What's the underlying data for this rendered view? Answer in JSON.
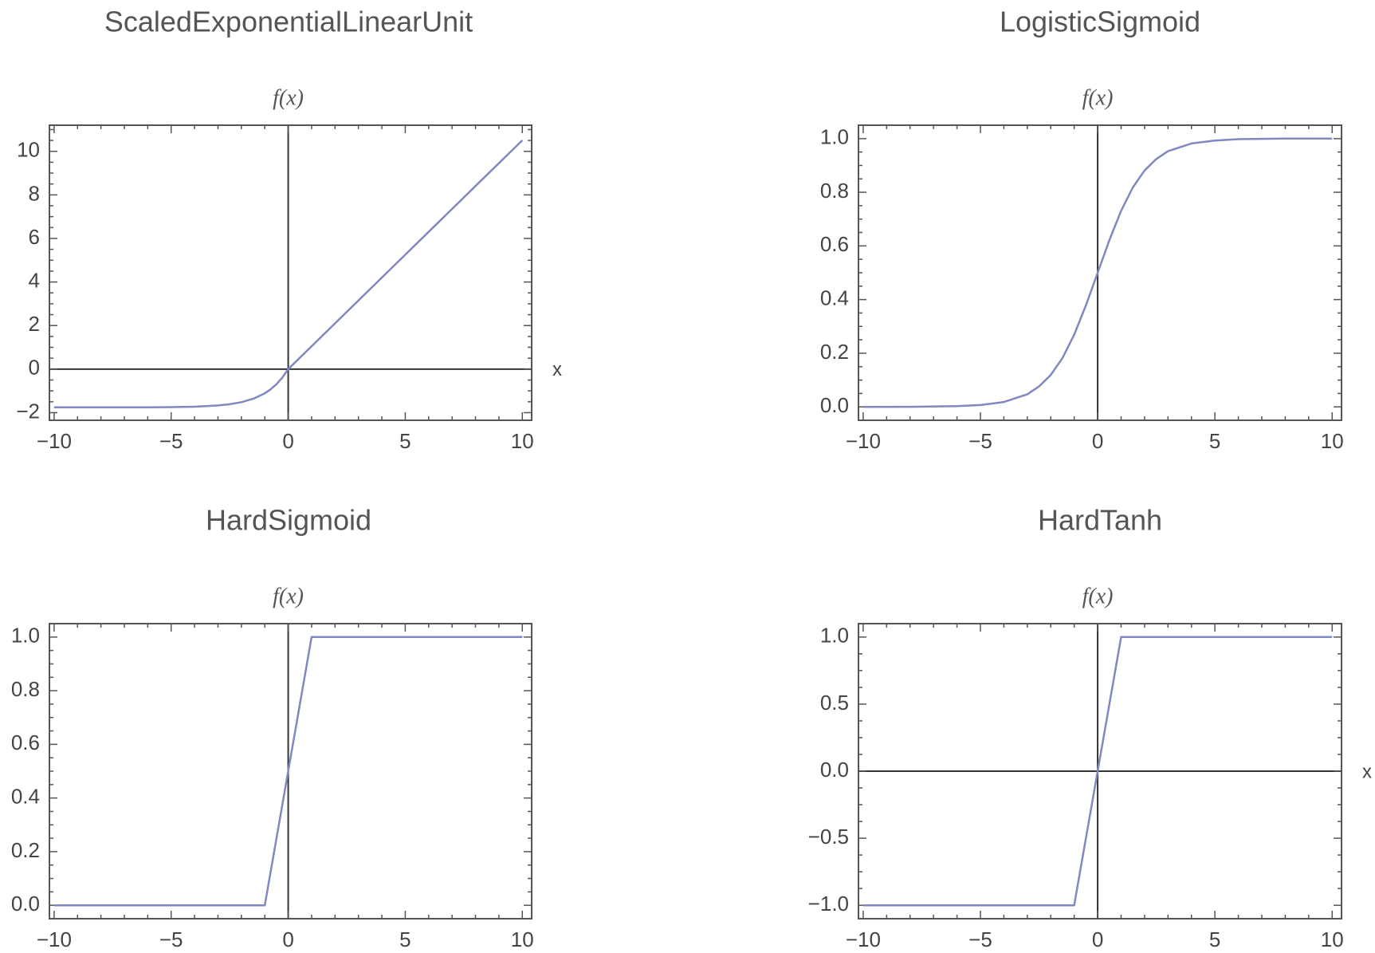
{
  "chart_data": [
    {
      "type": "line",
      "title": "ScaledExponentialLinearUnit",
      "ylabel": "f(x)",
      "xlabel": "x",
      "xlim": [
        -10.2,
        10.4
      ],
      "ylim": [
        -2.35,
        11.2
      ],
      "xticks": [
        -10,
        -5,
        0,
        5,
        10
      ],
      "xtick_labels": [
        "−10",
        "−5",
        "0",
        "5",
        "10"
      ],
      "yticks": [
        -2,
        0,
        2,
        4,
        6,
        8,
        10
      ],
      "ytick_labels": [
        "−2",
        "0",
        "2",
        "4",
        "6",
        "8",
        "10"
      ],
      "series": [
        {
          "x": [
            -10,
            -8,
            -6,
            -5,
            -4,
            -3,
            -2.5,
            -2,
            -1.5,
            -1,
            -0.75,
            -0.5,
            -0.25,
            0,
            2,
            4,
            6,
            8,
            10
          ],
          "values": [
            -1.758,
            -1.757,
            -1.754,
            -1.746,
            -1.726,
            -1.67,
            -1.614,
            -1.52,
            -1.366,
            -1.111,
            -0.93,
            -0.692,
            -0.388,
            0,
            2.101,
            4.203,
            6.304,
            8.406,
            10.507
          ]
        }
      ],
      "line_color": "#8088c0",
      "axis_lines_at_zero": [
        "x",
        "y"
      ],
      "grid": false
    },
    {
      "type": "line",
      "title": "LogisticSigmoid",
      "ylabel": "f(x)",
      "xlabel": "",
      "xlim": [
        -10.2,
        10.4
      ],
      "ylim": [
        -0.05,
        1.05
      ],
      "xticks": [
        -10,
        -5,
        0,
        5,
        10
      ],
      "xtick_labels": [
        "−10",
        "−5",
        "0",
        "5",
        "10"
      ],
      "yticks": [
        0,
        0.2,
        0.4,
        0.6,
        0.8,
        1.0
      ],
      "ytick_labels": [
        "0.0",
        "0.2",
        "0.4",
        "0.6",
        "0.8",
        "1.0"
      ],
      "series": [
        {
          "x": [
            -10,
            -8,
            -6,
            -5,
            -4,
            -3,
            -2.5,
            -2,
            -1.5,
            -1,
            -0.5,
            0,
            0.5,
            1,
            1.5,
            2,
            2.5,
            3,
            4,
            5,
            6,
            8,
            10
          ],
          "values": [
            0.0,
            0.0003,
            0.0025,
            0.0067,
            0.018,
            0.047,
            0.076,
            0.119,
            0.182,
            0.269,
            0.378,
            0.5,
            0.622,
            0.731,
            0.818,
            0.881,
            0.924,
            0.953,
            0.982,
            0.993,
            0.998,
            1.0,
            1.0
          ]
        }
      ],
      "line_color": "#8088c0",
      "axis_lines_at_zero": [
        "y"
      ],
      "grid": false
    },
    {
      "type": "line",
      "title": "HardSigmoid",
      "ylabel": "f(x)",
      "xlabel": "",
      "xlim": [
        -10.2,
        10.4
      ],
      "ylim": [
        -0.05,
        1.05
      ],
      "xticks": [
        -10,
        -5,
        0,
        5,
        10
      ],
      "xtick_labels": [
        "−10",
        "−5",
        "0",
        "5",
        "10"
      ],
      "yticks": [
        0,
        0.2,
        0.4,
        0.6,
        0.8,
        1.0
      ],
      "ytick_labels": [
        "0.0",
        "0.2",
        "0.4",
        "0.6",
        "0.8",
        "1.0"
      ],
      "series": [
        {
          "x": [
            -10,
            -1,
            1,
            10
          ],
          "values": [
            0,
            0,
            1,
            1
          ]
        }
      ],
      "line_color": "#8088c0",
      "axis_lines_at_zero": [
        "y"
      ],
      "grid": false
    },
    {
      "type": "line",
      "title": "HardTanh",
      "ylabel": "f(x)",
      "xlabel": "x",
      "xlim": [
        -10.2,
        10.4
      ],
      "ylim": [
        -1.1,
        1.1
      ],
      "xticks": [
        -10,
        -5,
        0,
        5,
        10
      ],
      "xtick_labels": [
        "−10",
        "−5",
        "0",
        "5",
        "10"
      ],
      "yticks": [
        -1,
        -0.5,
        0,
        0.5,
        1
      ],
      "ytick_labels": [
        "−1.0",
        "−0.5",
        "0.0",
        "0.5",
        "1.0"
      ],
      "series": [
        {
          "x": [
            -10,
            -1,
            1,
            10
          ],
          "values": [
            -1,
            -1,
            1,
            1
          ]
        }
      ],
      "line_color": "#8088c0",
      "axis_lines_at_zero": [
        "x",
        "y"
      ],
      "grid": false
    }
  ]
}
